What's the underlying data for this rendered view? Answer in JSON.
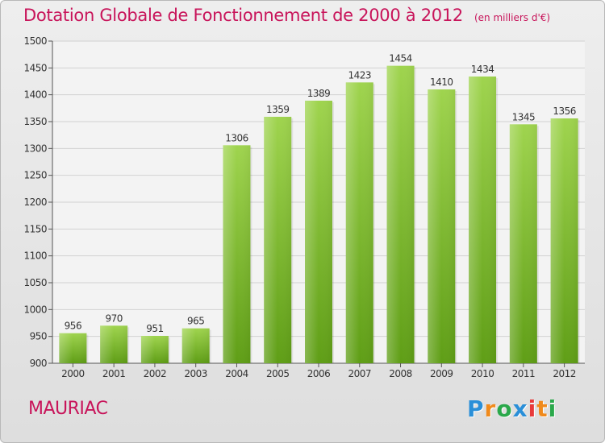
{
  "title": "Dotation Globale de Fonctionnement de 2000 à 2012",
  "unit_note": "(en milliers d'€)",
  "location": "MAURIAC",
  "brand": {
    "name": "Proxiti",
    "letters": [
      {
        "ch": "P",
        "color": "#2a8fd8"
      },
      {
        "ch": "r",
        "color": "#f08a1c"
      },
      {
        "ch": "o",
        "color": "#2aa84a"
      },
      {
        "ch": "x",
        "color": "#2a8fd8"
      },
      {
        "ch": "i",
        "color": "#e83a3a"
      },
      {
        "ch": "t",
        "color": "#f08a1c"
      },
      {
        "ch": "i",
        "color": "#2aa84a"
      }
    ]
  },
  "colors": {
    "bar_top": "#9fd44e",
    "bar_bottom": "#5f9e16",
    "grid": "#d2d2d2",
    "title": "#c8145a"
  },
  "chart_data": {
    "type": "bar",
    "title": "Dotation Globale de Fonctionnement de 2000 à 2012",
    "subtitle": "(en milliers d'€)",
    "xlabel": "",
    "ylabel": "",
    "categories": [
      "2000",
      "2001",
      "2002",
      "2003",
      "2004",
      "2005",
      "2006",
      "2007",
      "2008",
      "2009",
      "2010",
      "2011",
      "2012"
    ],
    "values": [
      956,
      970,
      951,
      965,
      1306,
      1359,
      1389,
      1423,
      1454,
      1410,
      1434,
      1345,
      1356
    ],
    "ylim": [
      900,
      1500
    ],
    "yticks": [
      900,
      950,
      1000,
      1050,
      1100,
      1150,
      1200,
      1250,
      1300,
      1350,
      1400,
      1450,
      1500
    ],
    "grid": true,
    "data_labels": true,
    "legend": "none"
  }
}
